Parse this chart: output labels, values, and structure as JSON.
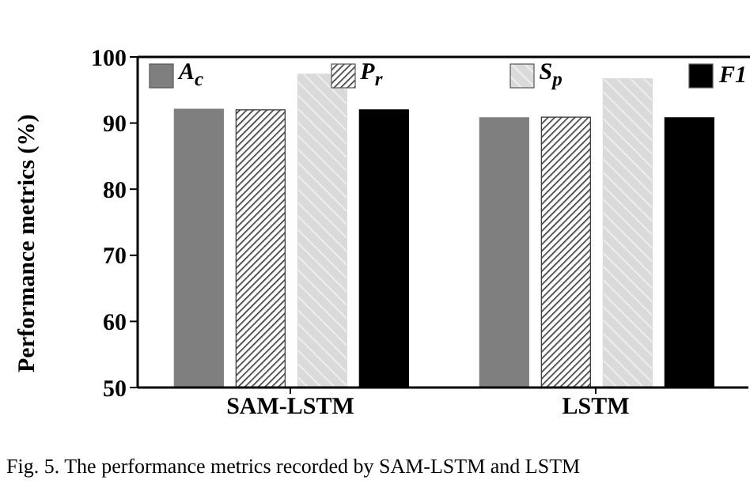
{
  "chart_data": {
    "type": "bar",
    "ylabel": "Performance metrics (%)",
    "categories": [
      "SAM-LSTM",
      "LSTM"
    ],
    "series": [
      {
        "name": "A$_{c}$",
        "color": "#7f7f7f",
        "values": [
          92.1,
          90.8
        ]
      },
      {
        "name": "P$_{r}$",
        "color": "#333333",
        "values": [
          92.0,
          90.9
        ]
      },
      {
        "name": "S$_{p}$",
        "color": "#dadada",
        "values": [
          97.4,
          96.7
        ]
      },
      {
        "name": "F1",
        "color": "#000000",
        "values": [
          92.0,
          90.8
        ]
      }
    ],
    "ylim": [
      50,
      100
    ],
    "yticks": [
      50,
      60,
      70,
      80,
      90,
      100
    ],
    "legend": "top",
    "annotations": [
      "Fig. 5. The performance metrics recorded by SAM-LSTM and LSTM"
    ]
  }
}
